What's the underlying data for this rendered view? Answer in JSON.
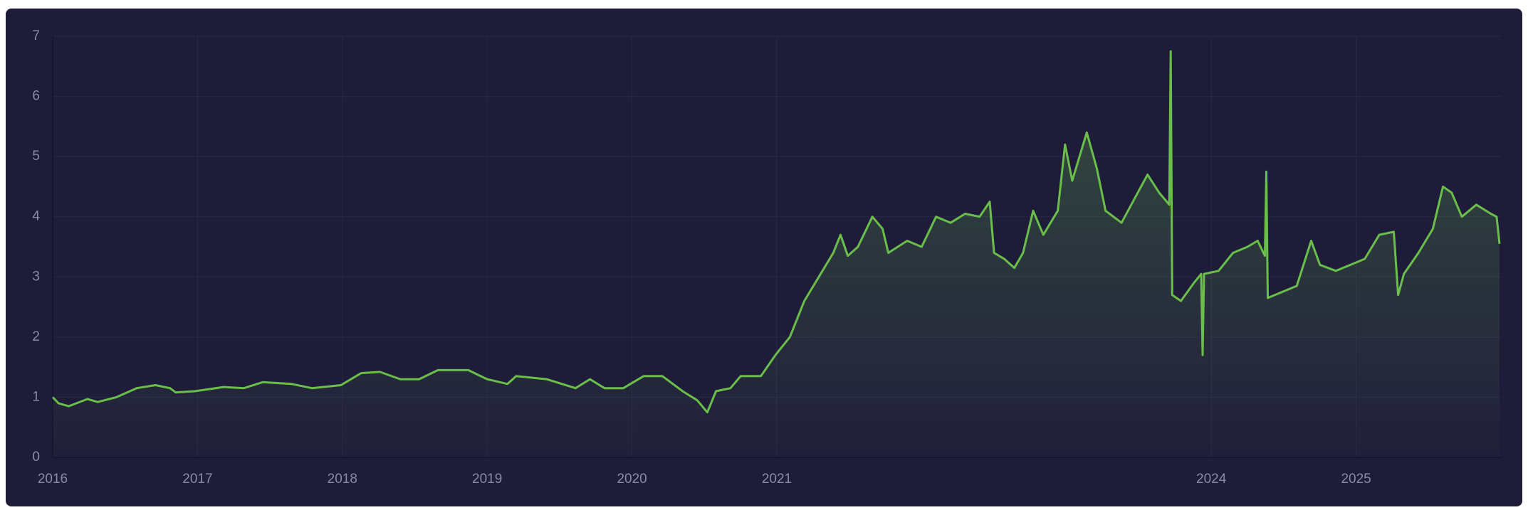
{
  "chart_data": {
    "type": "line",
    "x": [
      2016.0,
      2016.04,
      2016.11,
      2016.24,
      2016.31,
      2016.44,
      2016.58,
      2016.71,
      2016.81,
      2016.85,
      2016.98,
      2017.18,
      2017.32,
      2017.45,
      2017.65,
      2017.79,
      2017.99,
      2018.13,
      2018.26,
      2018.4,
      2018.53,
      2018.66,
      2018.87,
      2019.0,
      2019.14,
      2019.2,
      2019.41,
      2019.61,
      2019.71,
      2019.81,
      2019.94,
      2020.08,
      2020.21,
      2020.35,
      2020.45,
      2020.52,
      2020.58,
      2020.68,
      2020.75,
      2020.89,
      2020.99,
      2021.09,
      2021.19,
      2021.29,
      2021.39,
      2021.44,
      2021.49,
      2021.56,
      2021.66,
      2021.73,
      2021.77,
      2021.9,
      2022.0,
      2022.1,
      2022.2,
      2022.3,
      2022.4,
      2022.47,
      2022.5,
      2022.57,
      2022.64,
      2022.7,
      2022.77,
      2022.84,
      2022.94,
      2022.99,
      2023.04,
      2023.14,
      2023.21,
      2023.27,
      2023.38,
      2023.47,
      2023.56,
      2023.64,
      2023.71,
      2023.72,
      2023.73,
      2023.79,
      2023.88,
      2023.93,
      2023.94,
      2023.95,
      2024.05,
      2024.15,
      2024.25,
      2024.32,
      2024.37,
      2024.38,
      2024.39,
      2024.49,
      2024.59,
      2024.69,
      2024.75,
      2024.86,
      2024.96,
      2025.06,
      2025.16,
      2025.26,
      2025.29,
      2025.33,
      2025.43,
      2025.53,
      2025.6,
      2025.66,
      2025.73,
      2025.83,
      2025.93,
      2025.97,
      2025.99
    ],
    "values": [
      1.0,
      0.9,
      0.85,
      0.97,
      0.92,
      1.0,
      1.15,
      1.2,
      1.15,
      1.08,
      1.1,
      1.17,
      1.15,
      1.25,
      1.22,
      1.15,
      1.2,
      1.4,
      1.42,
      1.3,
      1.3,
      1.45,
      1.45,
      1.3,
      1.22,
      1.35,
      1.3,
      1.15,
      1.3,
      1.15,
      1.15,
      1.35,
      1.35,
      1.1,
      0.95,
      0.75,
      1.1,
      1.15,
      1.35,
      1.35,
      1.7,
      2.0,
      2.6,
      3.0,
      3.4,
      3.7,
      3.35,
      3.5,
      4.0,
      3.8,
      3.4,
      3.6,
      3.5,
      4.0,
      3.9,
      4.05,
      4.0,
      4.25,
      3.4,
      3.3,
      3.15,
      3.4,
      4.1,
      3.7,
      4.1,
      5.2,
      4.6,
      5.4,
      4.8,
      4.1,
      3.9,
      4.3,
      4.7,
      4.4,
      4.2,
      6.75,
      2.7,
      2.6,
      2.9,
      3.05,
      1.7,
      3.05,
      3.1,
      3.4,
      3.5,
      3.6,
      3.35,
      4.75,
      2.65,
      2.75,
      2.85,
      3.6,
      3.2,
      3.1,
      3.2,
      3.3,
      3.7,
      3.75,
      2.7,
      3.05,
      3.4,
      3.8,
      4.5,
      4.4,
      4.0,
      4.2,
      4.05,
      4.0,
      3.55
    ],
    "color": "#6abf4b",
    "xlim": [
      2016,
      2026
    ],
    "xticks": [
      2016,
      2017,
      2018,
      2019,
      2020,
      2021,
      2024,
      2025
    ],
    "ylim": [
      0,
      7
    ],
    "yticks": [
      0,
      1,
      2,
      3,
      4,
      5,
      6,
      7
    ],
    "grid": true
  }
}
